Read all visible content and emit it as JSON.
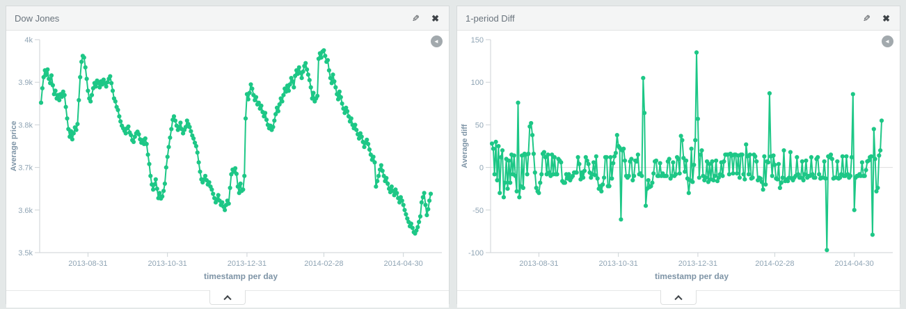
{
  "colors": {
    "accent_green": "#1dc786",
    "page_background": "#e4e8e8",
    "panel_header_background": "#f4f5f5",
    "axis_tick_text": "#8fa4b4",
    "axis_title_text": "#7e94a6",
    "axis_line": "#ccd2d6",
    "zero_gridline": "#dddddd",
    "icon_dark": "#3e4347",
    "back_circle": "#a2a9ad"
  },
  "icons": {
    "edit_glyph": "✎",
    "close_glyph": "✖",
    "back_glyph": "◄"
  },
  "panels": [
    {
      "title": "Dow Jones",
      "chart_data": {
        "type": "line",
        "marker": "circle",
        "series_name": "Average price",
        "xlabel": "timestamp per day",
        "ylabel": "Average price",
        "ylim": [
          3500,
          4000
        ],
        "grid": "zero-line-only",
        "legend": "none",
        "y_ticks": [
          {
            "value": 3500,
            "label": "3.5k"
          },
          {
            "value": 3600,
            "label": "3.6k"
          },
          {
            "value": 3700,
            "label": "3.7k"
          },
          {
            "value": 3800,
            "label": "3.8k"
          },
          {
            "value": 3900,
            "label": "3.9k"
          },
          {
            "value": 4000,
            "label": "4k"
          }
        ],
        "x_ticks": [
          {
            "index": 36,
            "label": "2013-08-31"
          },
          {
            "index": 97,
            "label": "2013-10-31"
          },
          {
            "index": 158,
            "label": "2013-12-31"
          },
          {
            "index": 217,
            "label": "2014-02-28"
          },
          {
            "index": 278,
            "label": "2014-04-30"
          }
        ],
        "zero_line": false,
        "values": [
          3852,
          3886,
          3912,
          3928,
          3917,
          3930,
          3908,
          3898,
          3916,
          3893,
          3872,
          3880,
          3862,
          3870,
          3858,
          3872,
          3866,
          3878,
          3870,
          3842,
          3815,
          3790,
          3772,
          3785,
          3766,
          3780,
          3794,
          3788,
          3802,
          3858,
          3912,
          3948,
          3962,
          3958,
          3935,
          3908,
          3880,
          3862,
          3855,
          3870,
          3886,
          3898,
          3890,
          3904,
          3898,
          3888,
          3902,
          3895,
          3906,
          3898,
          3890,
          3900,
          3908,
          3914,
          3898,
          3880,
          3862,
          3855,
          3842,
          3835,
          3820,
          3808,
          3798,
          3792,
          3786,
          3780,
          3792,
          3796,
          3782,
          3776,
          3764,
          3760,
          3772,
          3780,
          3784,
          3778,
          3766,
          3758,
          3764,
          3755,
          3768,
          3755,
          3730,
          3708,
          3680,
          3660,
          3648,
          3660,
          3672,
          3650,
          3628,
          3640,
          3627,
          3632,
          3645,
          3662,
          3700,
          3725,
          3748,
          3770,
          3790,
          3812,
          3820,
          3810,
          3798,
          3788,
          3795,
          3805,
          3790,
          3780,
          3788,
          3795,
          3810,
          3802,
          3795,
          3785,
          3775,
          3768,
          3758,
          3750,
          3735,
          3712,
          3690,
          3672,
          3665,
          3672,
          3680,
          3670,
          3660,
          3665,
          3655,
          3648,
          3638,
          3628,
          3618,
          3625,
          3635,
          3622,
          3612,
          3618,
          3608,
          3600,
          3612,
          3622,
          3615,
          3652,
          3684,
          3695,
          3690,
          3698,
          3685,
          3655,
          3640,
          3662,
          3645,
          3648,
          3680,
          3815,
          3872,
          3860,
          3875,
          3895,
          3885,
          3870,
          3858,
          3865,
          3848,
          3852,
          3838,
          3845,
          3830,
          3820,
          3828,
          3812,
          3800,
          3792,
          3798,
          3788,
          3795,
          3810,
          3825,
          3840,
          3832,
          3848,
          3862,
          3855,
          3870,
          3885,
          3878,
          3892,
          3880,
          3895,
          3910,
          3902,
          3888,
          3915,
          3928,
          3920,
          3935,
          3922,
          3910,
          3925,
          3938,
          3945,
          3930,
          3918,
          3905,
          3888,
          3862,
          3875,
          3855,
          3862,
          3868,
          3955,
          3968,
          3958,
          3972,
          3975,
          3962,
          3948,
          3952,
          3928,
          3910,
          3898,
          3918,
          3902,
          3888,
          3872,
          3860,
          3878,
          3865,
          3850,
          3838,
          3828,
          3840,
          3832,
          3820,
          3808,
          3815,
          3800,
          3792,
          3800,
          3788,
          3778,
          3768,
          3780,
          3772,
          3760,
          3748,
          3758,
          3765,
          3755,
          3742,
          3730,
          3718,
          3725,
          3712,
          3655,
          3668,
          3680,
          3695,
          3705,
          3692,
          3680,
          3668,
          3675,
          3662,
          3650,
          3642,
          3655,
          3645,
          3635,
          3648,
          3640,
          3628,
          3618,
          3630,
          3622,
          3612,
          3600,
          3590,
          3580,
          3572,
          3562,
          3568,
          3558,
          3548,
          3545,
          3552,
          3560,
          3572,
          3585,
          3618,
          3630,
          3640,
          3612,
          3588,
          3602,
          3622,
          3638
        ]
      }
    },
    {
      "title": "1-period Diff",
      "chart_data": {
        "type": "line",
        "marker": "circle",
        "series_name": "Average diff",
        "xlabel": "timestamp per day",
        "ylabel": "Average diff",
        "ylim": [
          -100,
          150
        ],
        "grid": "zero-line-only",
        "legend": "none",
        "y_ticks": [
          {
            "value": -100,
            "label": "-100"
          },
          {
            "value": -50,
            "label": "-50"
          },
          {
            "value": 0,
            "label": "0"
          },
          {
            "value": 50,
            "label": "50"
          },
          {
            "value": 100,
            "label": "100"
          },
          {
            "value": 150,
            "label": "150"
          }
        ],
        "x_ticks": [
          {
            "index": 36,
            "label": "2013-08-31"
          },
          {
            "index": 97,
            "label": "2013-10-31"
          },
          {
            "index": 158,
            "label": "2013-12-31"
          },
          {
            "index": 217,
            "label": "2014-02-28"
          },
          {
            "index": 278,
            "label": "2014-04-30"
          }
        ],
        "zero_line": true,
        "values": [
          28,
          22,
          -8,
          30,
          -15,
          25,
          -30,
          12,
          20,
          -35,
          -18,
          10,
          -25,
          8,
          -18,
          15,
          -8,
          14,
          -10,
          -28,
          76,
          -35,
          -22,
          14,
          -24,
          16,
          15,
          -8,
          16,
          48,
          52,
          38,
          16,
          -6,
          -24,
          -28,
          -30,
          -18,
          -8,
          16,
          18,
          12,
          -8,
          15,
          -6,
          -10,
          15,
          -8,
          12,
          -8,
          -8,
          10,
          8,
          6,
          -16,
          -18,
          -18,
          -8,
          -13,
          -8,
          -15,
          -12,
          -10,
          -6,
          -6,
          -6,
          12,
          4,
          -14,
          -6,
          -12,
          -4,
          12,
          8,
          4,
          -6,
          -12,
          -8,
          6,
          -9,
          13,
          -13,
          -25,
          -22,
          -28,
          -20,
          -12,
          12,
          12,
          -22,
          -22,
          12,
          -13,
          5,
          13,
          17,
          38,
          25,
          23,
          -61,
          20,
          22,
          8,
          -10,
          -12,
          -10,
          7,
          10,
          -15,
          -10,
          8,
          7,
          15,
          -8,
          -7,
          -10,
          105,
          64,
          -45,
          -25,
          -15,
          -23,
          -22,
          -18,
          -7,
          7,
          8,
          -10,
          -10,
          5,
          -10,
          -7,
          -10,
          -10,
          -10,
          7,
          10,
          -13,
          -10,
          6,
          -10,
          -8,
          12,
          10,
          -7,
          37,
          32,
          11,
          -5,
          8,
          -13,
          -30,
          -15,
          22,
          -17,
          3,
          32,
          135,
          57,
          -12,
          15,
          20,
          -10,
          -15,
          -12,
          7,
          -17,
          4,
          -14,
          7,
          -15,
          -10,
          8,
          -16,
          -12,
          -8,
          6,
          -10,
          7,
          15,
          15,
          15,
          -8,
          16,
          14,
          -7,
          15,
          15,
          -7,
          14,
          -12,
          15,
          15,
          -8,
          -14,
          27,
          13,
          -8,
          15,
          -13,
          -12,
          15,
          13,
          7,
          -15,
          -12,
          -13,
          -17,
          -26,
          13,
          -20,
          7,
          6,
          87,
          13,
          -10,
          14,
          3,
          -13,
          -14,
          4,
          -24,
          -18,
          -12,
          20,
          -16,
          -14,
          -16,
          -12,
          18,
          -13,
          -15,
          -12,
          -10,
          12,
          -8,
          -12,
          -12,
          7,
          -15,
          -8,
          8,
          -12,
          -10,
          -10,
          12,
          -8,
          -12,
          -12,
          10,
          12,
          -8,
          -13,
          -12,
          -12,
          7,
          -13,
          -97,
          13,
          12,
          15,
          10,
          -13,
          -12,
          -12,
          7,
          -13,
          -12,
          -8,
          13,
          -10,
          -10,
          13,
          -8,
          -12,
          -10,
          12,
          86,
          -50,
          -12,
          -10,
          -10,
          -8,
          -10,
          6,
          -10,
          -10,
          -3,
          7,
          8,
          12,
          13,
          -79,
          45,
          10,
          -28,
          -24,
          14,
          20,
          55
        ]
      }
    }
  ]
}
